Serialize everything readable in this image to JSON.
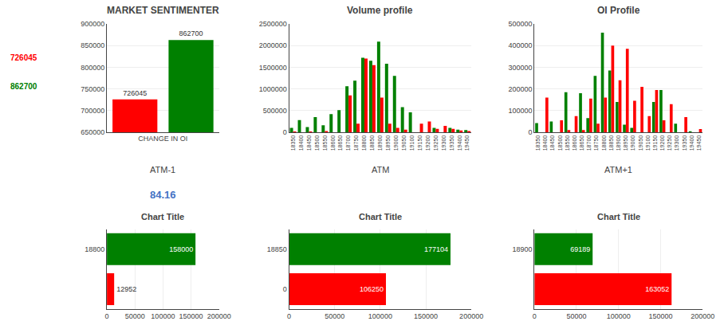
{
  "chart_data": [
    {
      "type": "bar",
      "title": "MARKET SENTIMENTER",
      "xlabel": "CHANGE IN OI",
      "categories": [
        null,
        null
      ],
      "values": [
        726045,
        862700
      ],
      "colors": [
        "red",
        "green"
      ],
      "ylim": [
        650000,
        900000
      ],
      "yticks": [
        650000,
        700000,
        750000,
        800000,
        850000,
        900000
      ],
      "grid": true,
      "data_labels": true,
      "tick_labels": "y",
      "annotations": [
        {
          "text": "726045",
          "color": "red"
        },
        {
          "text": "862700",
          "color": "green"
        },
        {
          "text": "84.16",
          "color": "#4472C4"
        }
      ]
    },
    {
      "type": "bar",
      "title": "Volume profile",
      "categories": [
        "18350",
        "18400",
        "18450",
        "18500",
        "18550",
        "18600",
        "18650",
        "18700",
        "18750",
        "18800",
        "18850",
        "18900",
        "18950",
        "19000",
        "19050",
        "19100",
        "19150",
        "19200",
        "19250",
        "19300",
        "19350",
        "19400",
        "19450"
      ],
      "series": [
        {
          "color": "green",
          "values": [
            100000,
            280000,
            120000,
            350000,
            160000,
            420000,
            510000,
            1060000,
            1190000,
            1720000,
            1650000,
            2090000,
            1580000,
            1300000,
            580000,
            460000,
            0,
            0,
            100000,
            0,
            100000,
            60000,
            50000
          ]
        },
        {
          "color": "red",
          "values": [
            5000,
            0,
            5000,
            0,
            30000,
            0,
            0,
            850000,
            200000,
            1700000,
            1550000,
            800000,
            200000,
            100000,
            60000,
            0,
            200000,
            250000,
            80000,
            150000,
            80000,
            40000,
            30000
          ]
        }
      ],
      "ylim": [
        0,
        2500000
      ],
      "yticks": [
        0,
        500000,
        1000000,
        1500000,
        2000000,
        2500000
      ],
      "grid": true
    },
    {
      "type": "bar",
      "title": "OI Profile",
      "categories": [
        "18350",
        "18400",
        "18450",
        "18500",
        "18550",
        "18600",
        "18650",
        "18700",
        "18750",
        "18800",
        "18850",
        "18900",
        "18950",
        "19000",
        "19050",
        "19100",
        "19150",
        "19200",
        "19250",
        "19300",
        "19350",
        "19400",
        "19450"
      ],
      "series": [
        {
          "color": "green",
          "values": [
            42000,
            0,
            50000,
            0,
            185000,
            0,
            180000,
            65000,
            260000,
            460000,
            285000,
            140000,
            35000,
            20000,
            0,
            0,
            140000,
            195000,
            0,
            40000,
            0,
            5000,
            0
          ]
        },
        {
          "color": "red",
          "values": [
            0,
            160000,
            0,
            55000,
            10000,
            75000,
            10000,
            155000,
            40000,
            160000,
            400000,
            240000,
            385000,
            145000,
            210000,
            75000,
            195000,
            55000,
            130000,
            0,
            70000,
            0,
            15000
          ]
        }
      ],
      "ylim": [
        0,
        500000
      ],
      "yticks": [
        0,
        100000,
        200000,
        300000,
        400000,
        500000
      ],
      "grid": true
    },
    {
      "type": "bar",
      "subtitle": "ATM-1",
      "title": "Chart Title",
      "orientation": "horizontal",
      "categories": [
        null,
        "18800"
      ],
      "values": [
        12952,
        158000
      ],
      "colors": [
        "red",
        "green"
      ],
      "xlim": [
        0,
        200000
      ],
      "xticks": [
        0,
        50000,
        100000,
        150000,
        200000
      ],
      "grid": true,
      "data_labels": true
    },
    {
      "type": "bar",
      "subtitle": "ATM",
      "title": "Chart Title",
      "orientation": "horizontal",
      "categories": [
        "0",
        "18850"
      ],
      "values": [
        106250,
        177104
      ],
      "colors": [
        "red",
        "green"
      ],
      "xlim": [
        0,
        200000
      ],
      "xticks": [
        0,
        50000,
        100000,
        150000,
        200000
      ],
      "grid": true,
      "data_labels": true
    },
    {
      "type": "bar",
      "subtitle": "ATM+1",
      "title": "Chart Title",
      "orientation": "horizontal",
      "categories": [
        null,
        "18900"
      ],
      "values": [
        163052,
        69189
      ],
      "colors": [
        "red",
        "green"
      ],
      "xlim": [
        0,
        200000
      ],
      "xticks": [
        0,
        50000,
        100000,
        150000,
        200000
      ],
      "grid": true,
      "data_labels": true
    }
  ]
}
